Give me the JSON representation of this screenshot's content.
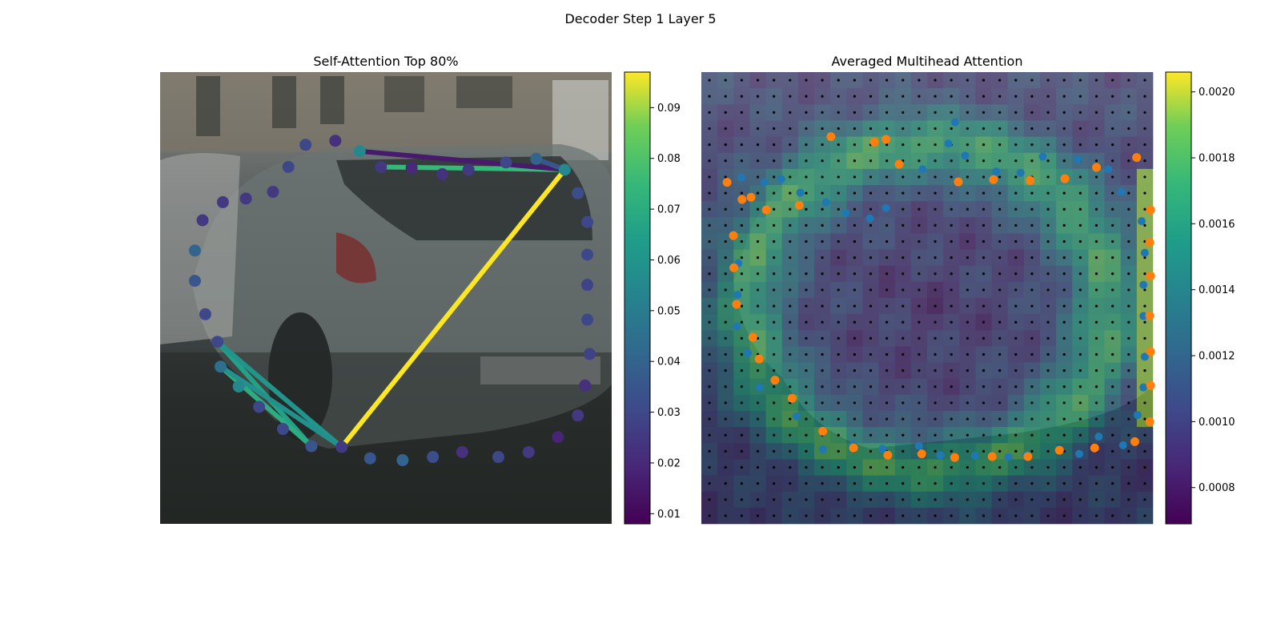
{
  "figure": {
    "suptitle": "Decoder Step 1 Layer 5"
  },
  "chart_data": [
    {
      "type": "scatter",
      "title": "Self-Attention Top 80%",
      "xlim": [
        0,
        1
      ],
      "ylim": [
        0,
        1
      ],
      "colorbar": {
        "ticks": [
          "0.01",
          "0.02",
          "0.03",
          "0.04",
          "0.05",
          "0.06",
          "0.07",
          "0.08",
          "0.09"
        ],
        "range": [
          0.008,
          0.097
        ]
      },
      "points": [
        {
          "x": 0.402,
          "y": 0.83,
          "v": 0.025
        },
        {
          "x": 0.465,
          "y": 0.855,
          "v": 0.035
        },
        {
          "x": 0.537,
          "y": 0.859,
          "v": 0.04
        },
        {
          "x": 0.604,
          "y": 0.852,
          "v": 0.032
        },
        {
          "x": 0.669,
          "y": 0.841,
          "v": 0.022
        },
        {
          "x": 0.749,
          "y": 0.852,
          "v": 0.03
        },
        {
          "x": 0.816,
          "y": 0.841,
          "v": 0.025
        },
        {
          "x": 0.881,
          "y": 0.808,
          "v": 0.018
        },
        {
          "x": 0.925,
          "y": 0.76,
          "v": 0.025
        },
        {
          "x": 0.941,
          "y": 0.694,
          "v": 0.022
        },
        {
          "x": 0.951,
          "y": 0.624,
          "v": 0.028
        },
        {
          "x": 0.946,
          "y": 0.548,
          "v": 0.03
        },
        {
          "x": 0.946,
          "y": 0.471,
          "v": 0.028
        },
        {
          "x": 0.946,
          "y": 0.404,
          "v": 0.03
        },
        {
          "x": 0.946,
          "y": 0.332,
          "v": 0.03
        },
        {
          "x": 0.925,
          "y": 0.268,
          "v": 0.032
        },
        {
          "x": 0.896,
          "y": 0.216,
          "v": 0.055
        },
        {
          "x": 0.833,
          "y": 0.192,
          "v": 0.04
        },
        {
          "x": 0.766,
          "y": 0.2,
          "v": 0.03
        },
        {
          "x": 0.683,
          "y": 0.216,
          "v": 0.025
        },
        {
          "x": 0.625,
          "y": 0.226,
          "v": 0.022
        },
        {
          "x": 0.557,
          "y": 0.212,
          "v": 0.02
        },
        {
          "x": 0.489,
          "y": 0.21,
          "v": 0.025
        },
        {
          "x": 0.442,
          "y": 0.175,
          "v": 0.055
        },
        {
          "x": 0.388,
          "y": 0.152,
          "v": 0.022
        },
        {
          "x": 0.322,
          "y": 0.161,
          "v": 0.03
        },
        {
          "x": 0.284,
          "y": 0.21,
          "v": 0.03
        },
        {
          "x": 0.25,
          "y": 0.265,
          "v": 0.025
        },
        {
          "x": 0.19,
          "y": 0.28,
          "v": 0.025
        },
        {
          "x": 0.139,
          "y": 0.288,
          "v": 0.025
        },
        {
          "x": 0.094,
          "y": 0.328,
          "v": 0.025
        },
        {
          "x": 0.077,
          "y": 0.395,
          "v": 0.04
        },
        {
          "x": 0.077,
          "y": 0.462,
          "v": 0.035
        },
        {
          "x": 0.1,
          "y": 0.536,
          "v": 0.03
        },
        {
          "x": 0.127,
          "y": 0.597,
          "v": 0.03
        },
        {
          "x": 0.134,
          "y": 0.652,
          "v": 0.045
        },
        {
          "x": 0.174,
          "y": 0.696,
          "v": 0.055
        },
        {
          "x": 0.219,
          "y": 0.741,
          "v": 0.03
        },
        {
          "x": 0.272,
          "y": 0.79,
          "v": 0.03
        },
        {
          "x": 0.335,
          "y": 0.828,
          "v": 0.035
        }
      ],
      "links": [
        {
          "from": 0,
          "to": 16,
          "v": 0.097
        },
        {
          "from": 22,
          "to": 16,
          "v": 0.075
        },
        {
          "from": 23,
          "to": 16,
          "v": 0.015
        },
        {
          "from": 17,
          "to": 16,
          "v": 0.035
        },
        {
          "from": 39,
          "to": 34,
          "v": 0.065
        },
        {
          "from": 0,
          "to": 34,
          "v": 0.06
        },
        {
          "from": 39,
          "to": 35,
          "v": 0.07
        },
        {
          "from": 0,
          "to": 35,
          "v": 0.058
        }
      ]
    },
    {
      "type": "heatmap",
      "title": "Averaged Multihead Attention",
      "xlim": [
        0,
        1
      ],
      "ylim": [
        0,
        1
      ],
      "colorbar": {
        "ticks": [
          "0.0008",
          "0.0010",
          "0.0012",
          "0.0014",
          "0.0016",
          "0.0018",
          "0.0020"
        ],
        "range": [
          0.00069,
          0.00206
        ]
      },
      "grid": {
        "cols": 28,
        "rows": 28
      },
      "ring": {
        "cx": 0.5,
        "cy": 0.52,
        "rx": 0.4,
        "ry": 0.36,
        "peak": 0.00175,
        "base": 0.001,
        "hot_edge": {
          "x": 0.98,
          "y0": 0.2,
          "y1": 0.8,
          "v": 0.00195
        }
      },
      "blue_points": [
        {
          "x": 0.089,
          "y": 0.233
        },
        {
          "x": 0.139,
          "y": 0.244
        },
        {
          "x": 0.177,
          "y": 0.237
        },
        {
          "x": 0.219,
          "y": 0.267
        },
        {
          "x": 0.276,
          "y": 0.288
        },
        {
          "x": 0.32,
          "y": 0.312
        },
        {
          "x": 0.373,
          "y": 0.324
        },
        {
          "x": 0.409,
          "y": 0.301
        },
        {
          "x": 0.49,
          "y": 0.215
        },
        {
          "x": 0.584,
          "y": 0.185
        },
        {
          "x": 0.562,
          "y": 0.111
        },
        {
          "x": 0.547,
          "y": 0.158
        },
        {
          "x": 0.653,
          "y": 0.22
        },
        {
          "x": 0.707,
          "y": 0.223
        },
        {
          "x": 0.756,
          "y": 0.187
        },
        {
          "x": 0.834,
          "y": 0.193
        },
        {
          "x": 0.901,
          "y": 0.215
        },
        {
          "x": 0.93,
          "y": 0.265
        },
        {
          "x": 0.975,
          "y": 0.33
        },
        {
          "x": 0.982,
          "y": 0.4
        },
        {
          "x": 0.979,
          "y": 0.471
        },
        {
          "x": 0.979,
          "y": 0.54
        },
        {
          "x": 0.982,
          "y": 0.63
        },
        {
          "x": 0.979,
          "y": 0.698
        },
        {
          "x": 0.966,
          "y": 0.759
        },
        {
          "x": 0.934,
          "y": 0.826
        },
        {
          "x": 0.88,
          "y": 0.807
        },
        {
          "x": 0.837,
          "y": 0.845
        },
        {
          "x": 0.719,
          "y": 0.848
        },
        {
          "x": 0.68,
          "y": 0.852
        },
        {
          "x": 0.606,
          "y": 0.849
        },
        {
          "x": 0.529,
          "y": 0.848
        },
        {
          "x": 0.482,
          "y": 0.828
        },
        {
          "x": 0.401,
          "y": 0.834
        },
        {
          "x": 0.336,
          "y": 0.825
        },
        {
          "x": 0.269,
          "y": 0.835
        },
        {
          "x": 0.211,
          "y": 0.762
        },
        {
          "x": 0.129,
          "y": 0.698
        },
        {
          "x": 0.103,
          "y": 0.622
        },
        {
          "x": 0.079,
          "y": 0.563
        },
        {
          "x": 0.08,
          "y": 0.493
        },
        {
          "x": 0.082,
          "y": 0.423
        }
      ],
      "orange_points": [
        {
          "x": 0.071,
          "y": 0.362
        },
        {
          "x": 0.072,
          "y": 0.433
        },
        {
          "x": 0.09,
          "y": 0.282
        },
        {
          "x": 0.078,
          "y": 0.514
        },
        {
          "x": 0.114,
          "y": 0.587
        },
        {
          "x": 0.128,
          "y": 0.635
        },
        {
          "x": 0.163,
          "y": 0.682
        },
        {
          "x": 0.201,
          "y": 0.722
        },
        {
          "x": 0.269,
          "y": 0.795
        },
        {
          "x": 0.337,
          "y": 0.832
        },
        {
          "x": 0.413,
          "y": 0.848
        },
        {
          "x": 0.488,
          "y": 0.845
        },
        {
          "x": 0.561,
          "y": 0.853
        },
        {
          "x": 0.644,
          "y": 0.851
        },
        {
          "x": 0.723,
          "y": 0.851
        },
        {
          "x": 0.793,
          "y": 0.837
        },
        {
          "x": 0.871,
          "y": 0.832
        },
        {
          "x": 0.96,
          "y": 0.818
        },
        {
          "x": 0.993,
          "y": 0.774
        },
        {
          "x": 0.995,
          "y": 0.694
        },
        {
          "x": 0.995,
          "y": 0.619
        },
        {
          "x": 0.993,
          "y": 0.539
        },
        {
          "x": 0.995,
          "y": 0.451
        },
        {
          "x": 0.993,
          "y": 0.377
        },
        {
          "x": 0.995,
          "y": 0.305
        },
        {
          "x": 0.964,
          "y": 0.189
        },
        {
          "x": 0.875,
          "y": 0.211
        },
        {
          "x": 0.805,
          "y": 0.236
        },
        {
          "x": 0.728,
          "y": 0.24
        },
        {
          "x": 0.647,
          "y": 0.238
        },
        {
          "x": 0.569,
          "y": 0.243
        },
        {
          "x": 0.438,
          "y": 0.204
        },
        {
          "x": 0.409,
          "y": 0.149
        },
        {
          "x": 0.383,
          "y": 0.155
        },
        {
          "x": 0.287,
          "y": 0.143
        },
        {
          "x": 0.217,
          "y": 0.295
        },
        {
          "x": 0.144,
          "y": 0.305
        },
        {
          "x": 0.11,
          "y": 0.277
        },
        {
          "x": 0.057,
          "y": 0.244
        }
      ]
    }
  ]
}
